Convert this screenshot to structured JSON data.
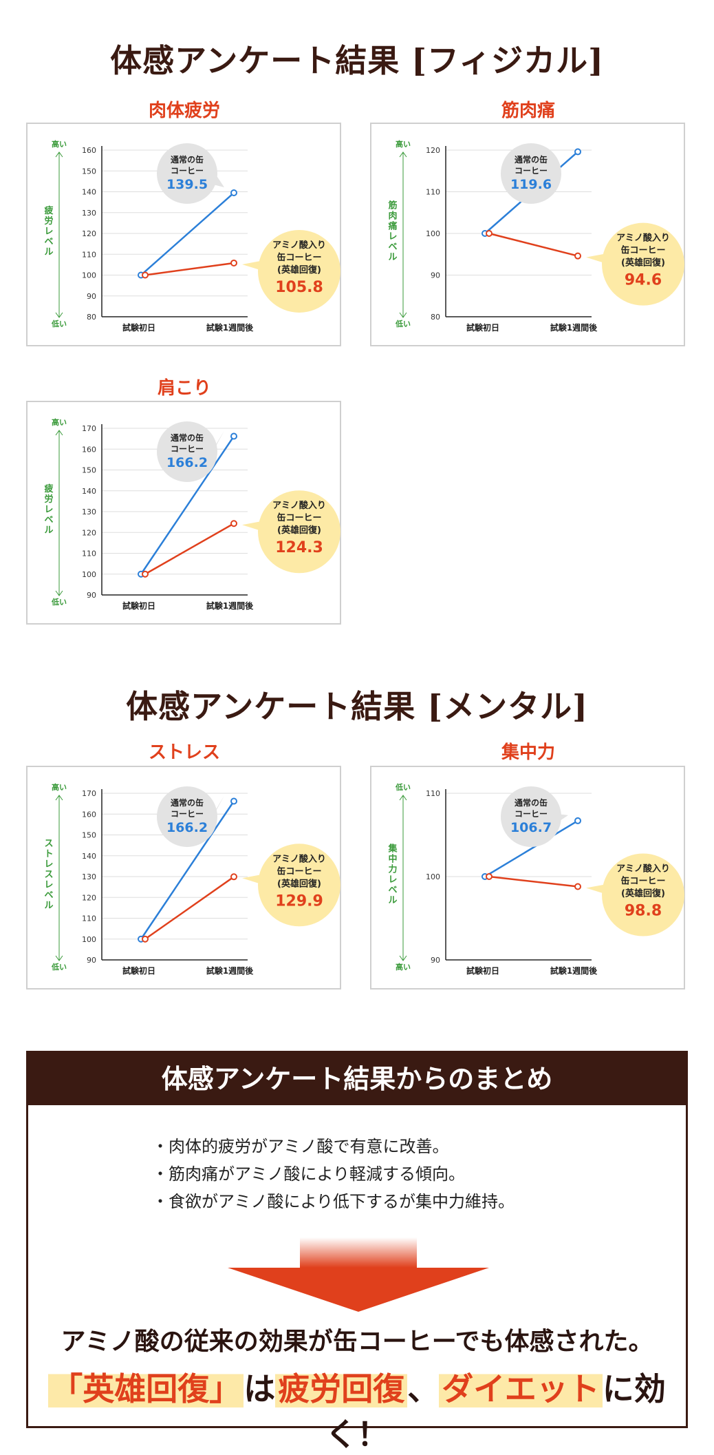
{
  "physical_title": "体感アンケート結果 [フィジカル]",
  "mental_title": "体感アンケート結果 [メンタル]",
  "colors": {
    "regular": "#2b7fd8",
    "amino": "#e0401c",
    "axis_text": "#3a9a3a",
    "bubble_gray": "#e3e3e3",
    "bubble_yellow": "#fdeaa6"
  },
  "chart_data": [
    {
      "type": "line",
      "title": "肉体疲労",
      "ylabel": "疲労レベル",
      "y_top_label": "高い",
      "y_bottom_label": "低い",
      "categories": [
        "試験初日",
        "試験1週間後"
      ],
      "ylim": [
        80,
        160
      ],
      "yticks": [
        80,
        90,
        100,
        110,
        120,
        130,
        140,
        150,
        160
      ],
      "series": [
        {
          "name": "通常の缶コーヒー",
          "values": [
            100,
            139.5
          ],
          "label_lines": [
            "通常の缶",
            "コーヒー"
          ],
          "value_label": "139.5"
        },
        {
          "name": "アミノ酸入り缶コーヒー(英雄回復)",
          "values": [
            100,
            105.8
          ],
          "label_lines": [
            "アミノ酸入り",
            "缶コーヒー",
            "(英雄回復)"
          ],
          "value_label": "105.8"
        }
      ]
    },
    {
      "type": "line",
      "title": "筋肉痛",
      "ylabel": "筋肉痛レベル",
      "y_top_label": "高い",
      "y_bottom_label": "低い",
      "categories": [
        "試験初日",
        "試験1週間後"
      ],
      "ylim": [
        80,
        120
      ],
      "yticks": [
        80,
        90,
        100,
        110,
        120
      ],
      "series": [
        {
          "name": "通常の缶コーヒー",
          "values": [
            100,
            119.6
          ],
          "label_lines": [
            "通常の缶",
            "コーヒー"
          ],
          "value_label": "119.6"
        },
        {
          "name": "アミノ酸入り缶コーヒー(英雄回復)",
          "values": [
            100,
            94.6
          ],
          "label_lines": [
            "アミノ酸入り",
            "缶コーヒー",
            "(英雄回復)"
          ],
          "value_label": "94.6"
        }
      ]
    },
    {
      "type": "line",
      "title": "肩こり",
      "ylabel": "疲労レベル",
      "y_top_label": "高い",
      "y_bottom_label": "低い",
      "categories": [
        "試験初日",
        "試験1週間後"
      ],
      "ylim": [
        90,
        170
      ],
      "yticks": [
        90,
        100,
        110,
        120,
        130,
        140,
        150,
        160,
        170
      ],
      "series": [
        {
          "name": "通常の缶コーヒー",
          "values": [
            100,
            166.2
          ],
          "label_lines": [
            "通常の缶",
            "コーヒー"
          ],
          "value_label": "166.2"
        },
        {
          "name": "アミノ酸入り缶コーヒー(英雄回復)",
          "values": [
            100,
            124.3
          ],
          "label_lines": [
            "アミノ酸入り",
            "缶コーヒー",
            "(英雄回復)"
          ],
          "value_label": "124.3"
        }
      ]
    },
    {
      "type": "line",
      "title": "ストレス",
      "ylabel": "ストレスレベル",
      "y_top_label": "高い",
      "y_bottom_label": "低い",
      "categories": [
        "試験初日",
        "試験1週間後"
      ],
      "ylim": [
        90,
        170
      ],
      "yticks": [
        90,
        100,
        110,
        120,
        130,
        140,
        150,
        160,
        170
      ],
      "series": [
        {
          "name": "通常の缶コーヒー",
          "values": [
            100,
            166.2
          ],
          "label_lines": [
            "通常の缶",
            "コーヒー"
          ],
          "value_label": "166.2"
        },
        {
          "name": "アミノ酸入り缶コーヒー(英雄回復)",
          "values": [
            100,
            129.9
          ],
          "label_lines": [
            "アミノ酸入り",
            "缶コーヒー",
            "(英雄回復)"
          ],
          "value_label": "129.9"
        }
      ]
    },
    {
      "type": "line",
      "title": "集中力",
      "ylabel": "集中力レベル",
      "y_top_label": "低い",
      "y_bottom_label": "高い",
      "categories": [
        "試験初日",
        "試験1週間後"
      ],
      "ylim": [
        90,
        110
      ],
      "yticks": [
        90,
        100,
        110
      ],
      "series": [
        {
          "name": "通常の缶コーヒー",
          "values": [
            100,
            106.7
          ],
          "label_lines": [
            "通常の缶",
            "コーヒー"
          ],
          "value_label": "106.7"
        },
        {
          "name": "アミノ酸入り缶コーヒー(英雄回復)",
          "values": [
            100,
            98.8
          ],
          "label_lines": [
            "アミノ酸入り",
            "缶コーヒー",
            "(英雄回復)"
          ],
          "value_label": "98.8"
        }
      ]
    }
  ],
  "summary": {
    "header": "体感アンケート結果からのまとめ",
    "bullets": [
      "肉体的疲労がアミノ酸で有意に改善。",
      "筋肉痛がアミノ酸により軽減する傾向。",
      "食欲がアミノ酸により低下するが集中力維持。"
    ],
    "conclusion_line1": "アミノ酸の従来の効果が缶コーヒーでも体感された。",
    "conclusion_line2": {
      "hl1": "「英雄回復」",
      "t1": "は",
      "hl2": "疲労回復",
      "t2": "、",
      "hl3": "ダイエット",
      "t3": "に効く！"
    }
  }
}
